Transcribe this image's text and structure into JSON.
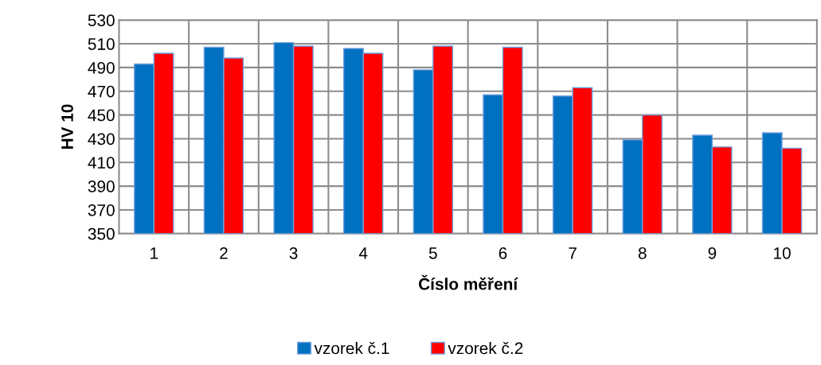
{
  "chart_data": {
    "type": "bar",
    "xlabel": "Číslo měření",
    "ylabel": "HV 10",
    "categories": [
      "1",
      "2",
      "3",
      "4",
      "5",
      "6",
      "7",
      "8",
      "9",
      "10"
    ],
    "series": [
      {
        "name": "vzorek č.1",
        "color": "#0070c0",
        "values": [
          493,
          507,
          511,
          506,
          488,
          467,
          466,
          429,
          433,
          435
        ]
      },
      {
        "name": "vzorek č.2",
        "color": "#ff0000",
        "values": [
          502,
          498,
          508,
          502,
          508,
          507,
          473,
          450,
          423,
          422
        ]
      }
    ],
    "ylim": [
      350,
      530
    ],
    "yticks": [
      350,
      370,
      390,
      410,
      430,
      450,
      470,
      490,
      510,
      530
    ],
    "grid": true,
    "legend": "bottom"
  }
}
